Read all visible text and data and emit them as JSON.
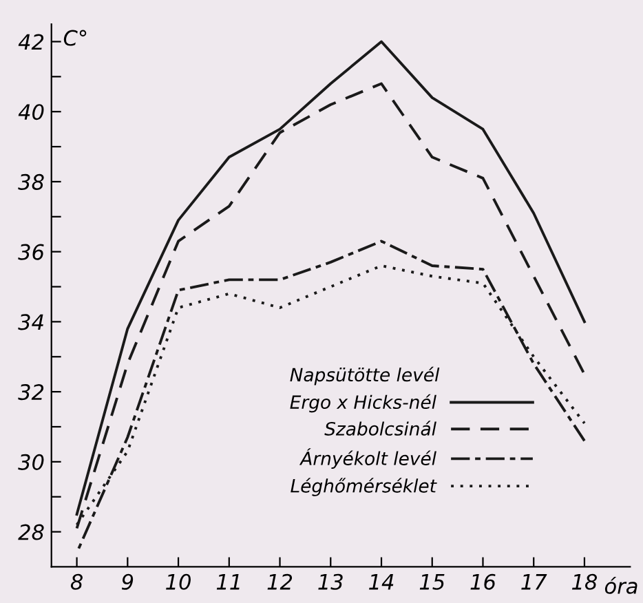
{
  "chart_data": {
    "type": "line",
    "xlabel": "óra",
    "ylabel": "C°",
    "legend_title": "Napsütötte levél",
    "x": [
      8,
      9,
      10,
      11,
      12,
      13,
      14,
      15,
      16,
      17,
      18
    ],
    "series": [
      {
        "name": "Ergo x Hicks-nél",
        "color": "#1a1a1a",
        "line_style": "solid",
        "values": [
          28.5,
          33.8,
          36.9,
          38.7,
          39.5,
          40.8,
          42.0,
          40.4,
          39.5,
          37.1,
          34.0
        ]
      },
      {
        "name": "Szabolcsinál",
        "color": "#1a1a1a",
        "line_style": "dashed",
        "values": [
          28.1,
          32.8,
          36.3,
          37.3,
          39.4,
          40.2,
          40.8,
          38.7,
          38.1,
          35.3,
          32.5
        ]
      },
      {
        "name": "Árnyékolt levél",
        "color": "#1a1a1a",
        "line_style": "dashdot",
        "values": [
          27.4,
          30.7,
          34.9,
          35.2,
          35.2,
          35.7,
          36.3,
          35.6,
          35.5,
          32.8,
          30.6
        ]
      },
      {
        "name": "Léghőmérséklet",
        "color": "#1a1a1a",
        "line_style": "dotted",
        "values": [
          28.2,
          30.3,
          34.4,
          34.8,
          34.4,
          35.0,
          35.6,
          35.3,
          35.1,
          33.0,
          31.1
        ]
      }
    ],
    "xlim": [
      7.5,
      18.9
    ],
    "ylim": [
      27,
      42.5
    ],
    "xticks": [
      8,
      9,
      10,
      11,
      12,
      13,
      14,
      15,
      16,
      17,
      18
    ],
    "yticks": [
      28,
      {
        "value": 29,
        "label": null
      },
      30,
      {
        "value": 31,
        "label": null
      },
      32,
      {
        "value": 33,
        "label": null
      },
      34,
      {
        "value": 35,
        "label": null
      },
      36,
      {
        "value": 37,
        "label": null
      },
      38,
      {
        "value": 39,
        "label": null
      },
      40,
      {
        "value": 41,
        "label": null
      },
      42
    ],
    "grid": false,
    "legend": "bottom right",
    "marker": "none"
  }
}
